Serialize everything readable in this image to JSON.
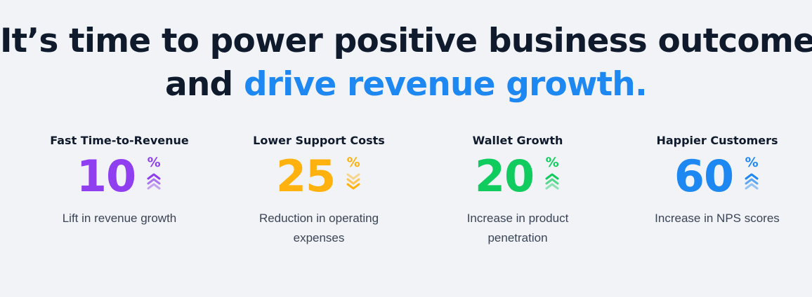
{
  "headline": {
    "line1": "It’s time to power positive business outcomes",
    "line2_plain": "and ",
    "line2_accent": "drive revenue growth."
  },
  "colors": {
    "text": "#0f1a2c",
    "accent": "#1e88f2",
    "background": "#f2f3f7"
  },
  "stats": [
    {
      "title": "Fast Time-to-Revenue",
      "value": "10",
      "suffix": "%",
      "trend": "up",
      "color": "#8f3ff0",
      "description": "Lift in revenue growth"
    },
    {
      "title": "Lower Support Costs",
      "value": "25",
      "suffix": "%",
      "trend": "down",
      "color": "#ffb20d",
      "description": "Reduction in operating expenses"
    },
    {
      "title": "Wallet Growth",
      "value": "20",
      "suffix": "%",
      "trend": "up",
      "color": "#10cc5e",
      "description": "Increase in product penetration"
    },
    {
      "title": "Happier Customers",
      "value": "60",
      "suffix": "%",
      "trend": "up",
      "color": "#1e88f2",
      "description": "Increase in NPS scores"
    }
  ]
}
